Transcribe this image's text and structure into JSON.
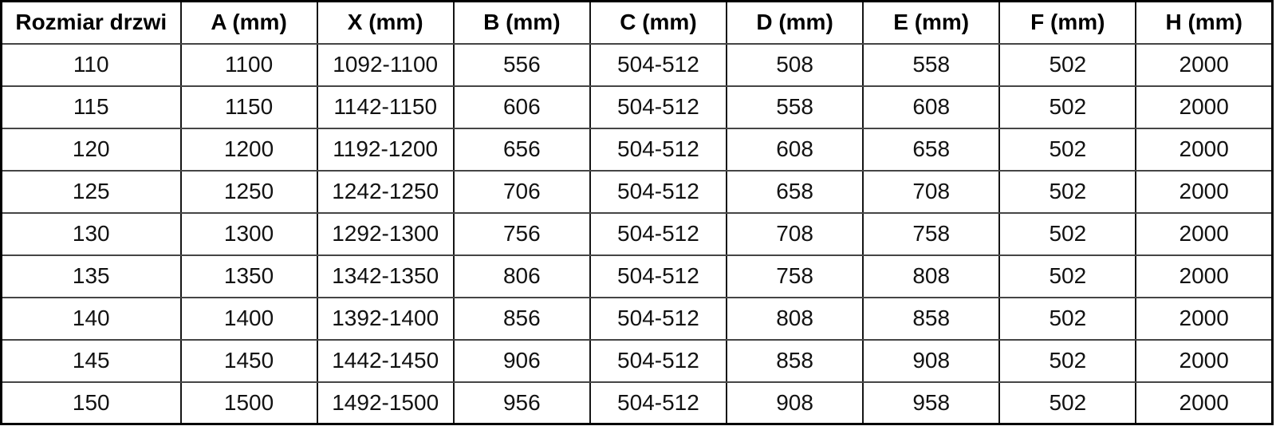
{
  "page": {
    "kind": "dimension-specification-table",
    "language": "pl",
    "colors": {
      "background": "#ffffff",
      "text": "#121212",
      "border_outer": "#000000",
      "border_vertical": "#151515",
      "border_horizontal": "#454545"
    }
  },
  "table": {
    "columns": [
      "Rozmiar drzwi",
      "A (mm)",
      "X (mm)",
      "B (mm)",
      "C (mm)",
      "D (mm)",
      "E (mm)",
      "F (mm)",
      "H (mm)"
    ],
    "rows": [
      [
        "110",
        "1100",
        "1092-1100",
        "556",
        "504-512",
        "508",
        "558",
        "502",
        "2000"
      ],
      [
        "115",
        "1150",
        "1142-1150",
        "606",
        "504-512",
        "558",
        "608",
        "502",
        "2000"
      ],
      [
        "120",
        "1200",
        "1192-1200",
        "656",
        "504-512",
        "608",
        "658",
        "502",
        "2000"
      ],
      [
        "125",
        "1250",
        "1242-1250",
        "706",
        "504-512",
        "658",
        "708",
        "502",
        "2000"
      ],
      [
        "130",
        "1300",
        "1292-1300",
        "756",
        "504-512",
        "708",
        "758",
        "502",
        "2000"
      ],
      [
        "135",
        "1350",
        "1342-1350",
        "806",
        "504-512",
        "758",
        "808",
        "502",
        "2000"
      ],
      [
        "140",
        "1400",
        "1392-1400",
        "856",
        "504-512",
        "808",
        "858",
        "502",
        "2000"
      ],
      [
        "145",
        "1450",
        "1442-1450",
        "906",
        "504-512",
        "858",
        "908",
        "502",
        "2000"
      ],
      [
        "150",
        "1500",
        "1492-1500",
        "956",
        "504-512",
        "908",
        "958",
        "502",
        "2000"
      ]
    ]
  }
}
